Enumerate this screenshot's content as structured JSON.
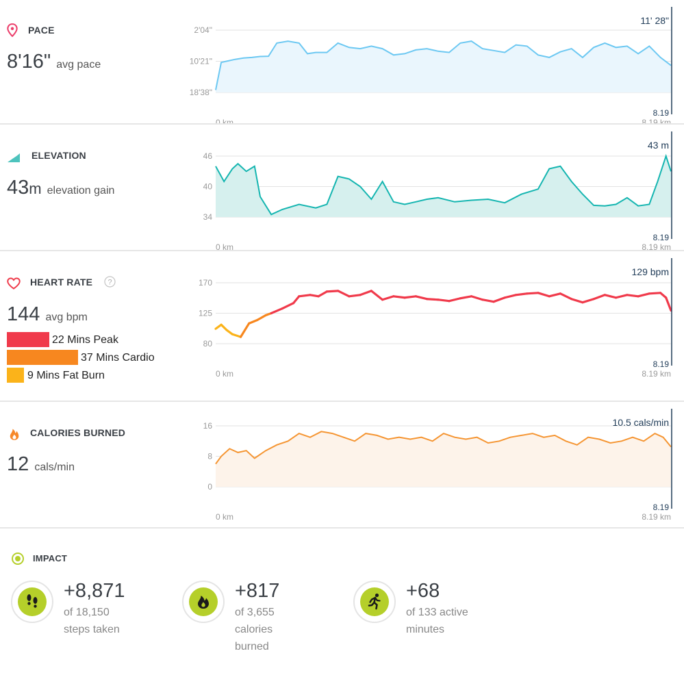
{
  "pace": {
    "title": "PACE",
    "value": "8'16\"",
    "unit": "avg pace",
    "current": "11' 28\"",
    "end_km": "8.19",
    "x_start": "0 km",
    "x_end": "8.19 km",
    "icon": "location-pin-icon",
    "color": "#6cc8f2"
  },
  "elevation": {
    "title": "ELEVATION",
    "value": "43",
    "value_unit": "m",
    "unit": "elevation gain",
    "current": "43 m",
    "end_km": "8.19",
    "x_start": "0 km",
    "x_end": "8.19 km",
    "icon": "mountain-icon",
    "color": "#14b5b0"
  },
  "heart": {
    "title": "HEART RATE",
    "value": "144",
    "unit": "avg bpm",
    "current": "129 bpm",
    "end_km": "8.19",
    "x_start": "0 km",
    "x_end": "8.19 km",
    "icon": "heart-icon",
    "help_icon": "question-icon",
    "zones": [
      {
        "label": "22 Mins Peak",
        "minutes": 22,
        "color": "#f03a4b"
      },
      {
        "label": "37 Mins Cardio",
        "minutes": 37,
        "color": "#f7871f"
      },
      {
        "label": "9 Mins Fat Burn",
        "minutes": 9,
        "color": "#fbb31a"
      }
    ]
  },
  "calories": {
    "title": "CALORIES BURNED",
    "value": "12",
    "unit": "cals/min",
    "current": "10.5 cals/min",
    "end_km": "8.19",
    "x_start": "0 km",
    "x_end": "8.19 km",
    "icon": "flame-icon",
    "color": "#f59532"
  },
  "impact": {
    "title": "IMPACT",
    "icon": "target-icon",
    "accent": "#b5cf2a",
    "items": [
      {
        "value": "+8,871",
        "line1": "of 18,150",
        "line2": "steps taken",
        "line3": "",
        "icon": "footprints-icon"
      },
      {
        "value": "+817",
        "line1": "of 3,655",
        "line2": "calories",
        "line3": "burned",
        "icon": "flame-icon"
      },
      {
        "value": "+68",
        "line1": "of 133 active",
        "line2": "minutes",
        "line3": "",
        "icon": "runner-icon"
      }
    ]
  },
  "chart_data": [
    {
      "type": "area",
      "title": "PACE",
      "ylabel": "",
      "xlabel": "",
      "y_ticks": [
        "2'04\"",
        "10'21\"",
        "18'38\""
      ],
      "x_ticks": [
        "0 km",
        "8.19 km"
      ],
      "xlim": [
        0,
        8.19
      ],
      "ylim_seconds": [
        124,
        1118
      ],
      "y_inverted": true,
      "series": [
        {
          "color": "#6cc8f2",
          "x": [
            0,
            0.1,
            0.2,
            0.35,
            0.5,
            0.65,
            0.8,
            0.95,
            1.1,
            1.3,
            1.5,
            1.65,
            1.8,
            2.0,
            2.2,
            2.4,
            2.6,
            2.8,
            3.0,
            3.2,
            3.4,
            3.6,
            3.8,
            4.0,
            4.2,
            4.4,
            4.6,
            4.8,
            5.0,
            5.2,
            5.4,
            5.6,
            5.8,
            6.0,
            6.2,
            6.4,
            6.6,
            6.8,
            7.0,
            7.2,
            7.4,
            7.6,
            7.8,
            8.0,
            8.19
          ],
          "y_seconds": [
            1080,
            640,
            620,
            590,
            570,
            560,
            545,
            540,
            330,
            300,
            330,
            500,
            480,
            480,
            330,
            400,
            420,
            380,
            420,
            520,
            500,
            440,
            420,
            460,
            480,
            330,
            300,
            420,
            450,
            480,
            360,
            380,
            520,
            560,
            470,
            420,
            560,
            400,
            330,
            400,
            380,
            500,
            380,
            560,
            688
          ]
        }
      ]
    },
    {
      "type": "area",
      "title": "ELEVATION",
      "ylabel": "",
      "xlabel": "",
      "y_ticks": [
        46,
        40,
        34
      ],
      "x_ticks": [
        "0 km",
        "8.19 km"
      ],
      "xlim": [
        0,
        8.19
      ],
      "ylim": [
        34,
        46
      ],
      "series": [
        {
          "color": "#14b5b0",
          "x": [
            0,
            0.15,
            0.3,
            0.4,
            0.55,
            0.7,
            0.8,
            1.0,
            1.2,
            1.5,
            1.8,
            2.0,
            2.2,
            2.4,
            2.6,
            2.8,
            3.0,
            3.2,
            3.4,
            3.6,
            3.8,
            4.0,
            4.3,
            4.6,
            4.9,
            5.2,
            5.5,
            5.8,
            6.0,
            6.2,
            6.4,
            6.6,
            6.8,
            7.0,
            7.2,
            7.4,
            7.6,
            7.8,
            7.95,
            8.1,
            8.19
          ],
          "y": [
            44,
            41,
            43.5,
            44.5,
            43,
            44,
            38,
            34.5,
            35.5,
            36.5,
            35.8,
            36.5,
            42,
            41.5,
            40,
            37.5,
            41,
            37,
            36.5,
            37,
            37.5,
            37.8,
            37,
            37.3,
            37.5,
            36.8,
            38.5,
            39.5,
            43.5,
            44,
            41,
            38.5,
            36.3,
            36.2,
            36.5,
            37.8,
            36.2,
            36.5,
            41,
            46,
            43
          ]
        }
      ]
    },
    {
      "type": "line",
      "title": "HEART RATE",
      "ylabel": "",
      "xlabel": "",
      "y_ticks": [
        170,
        125,
        80
      ],
      "x_ticks": [
        "0 km",
        "8.19 km"
      ],
      "xlim": [
        0,
        8.19
      ],
      "ylim": [
        80,
        170
      ],
      "series": [
        {
          "x": [
            0,
            0.1,
            0.2,
            0.3,
            0.45,
            0.6,
            0.75,
            0.9,
            1.0,
            1.2,
            1.4,
            1.5,
            1.7,
            1.85,
            2.0,
            2.2,
            2.4,
            2.6,
            2.8,
            3.0,
            3.2,
            3.4,
            3.6,
            3.8,
            4.0,
            4.2,
            4.4,
            4.6,
            4.8,
            5.0,
            5.2,
            5.4,
            5.6,
            5.8,
            6.0,
            6.2,
            6.4,
            6.6,
            6.8,
            7.0,
            7.2,
            7.4,
            7.6,
            7.8,
            8.0,
            8.1,
            8.19
          ],
          "y": [
            102,
            108,
            100,
            94,
            90,
            110,
            115,
            122,
            125,
            132,
            140,
            150,
            152,
            150,
            157,
            158,
            150,
            152,
            158,
            145,
            150,
            148,
            150,
            146,
            145,
            143,
            147,
            150,
            145,
            142,
            148,
            152,
            154,
            155,
            150,
            154,
            146,
            141,
            146,
            152,
            148,
            152,
            150,
            154,
            155,
            148,
            129
          ],
          "zone_colors": [
            "#fbb31a",
            "#f7871f",
            "#f03a4b"
          ]
        }
      ]
    },
    {
      "type": "area",
      "title": "CALORIES BURNED",
      "ylabel": "",
      "xlabel": "",
      "y_ticks": [
        16,
        8,
        0
      ],
      "x_ticks": [
        "0 km",
        "8.19 km"
      ],
      "xlim": [
        0,
        8.19
      ],
      "ylim": [
        0,
        16
      ],
      "series": [
        {
          "color": "#f59532",
          "x": [
            0,
            0.1,
            0.25,
            0.4,
            0.55,
            0.7,
            0.9,
            1.1,
            1.3,
            1.5,
            1.7,
            1.9,
            2.1,
            2.3,
            2.5,
            2.7,
            2.9,
            3.1,
            3.3,
            3.5,
            3.7,
            3.9,
            4.1,
            4.3,
            4.5,
            4.7,
            4.9,
            5.1,
            5.3,
            5.5,
            5.7,
            5.9,
            6.1,
            6.3,
            6.5,
            6.7,
            6.9,
            7.1,
            7.3,
            7.5,
            7.7,
            7.9,
            8.05,
            8.19
          ],
          "y": [
            6,
            8,
            10,
            9,
            9.5,
            7.5,
            9.5,
            11,
            12,
            14,
            13,
            14.5,
            14,
            13,
            12,
            14,
            13.5,
            12.5,
            13,
            12.5,
            13,
            12,
            14,
            13,
            12.5,
            13,
            11.5,
            12,
            13,
            13.5,
            14,
            13,
            13.5,
            12,
            11,
            13,
            12.5,
            11.5,
            12,
            13,
            12,
            14,
            13,
            10.5
          ]
        }
      ]
    }
  ]
}
